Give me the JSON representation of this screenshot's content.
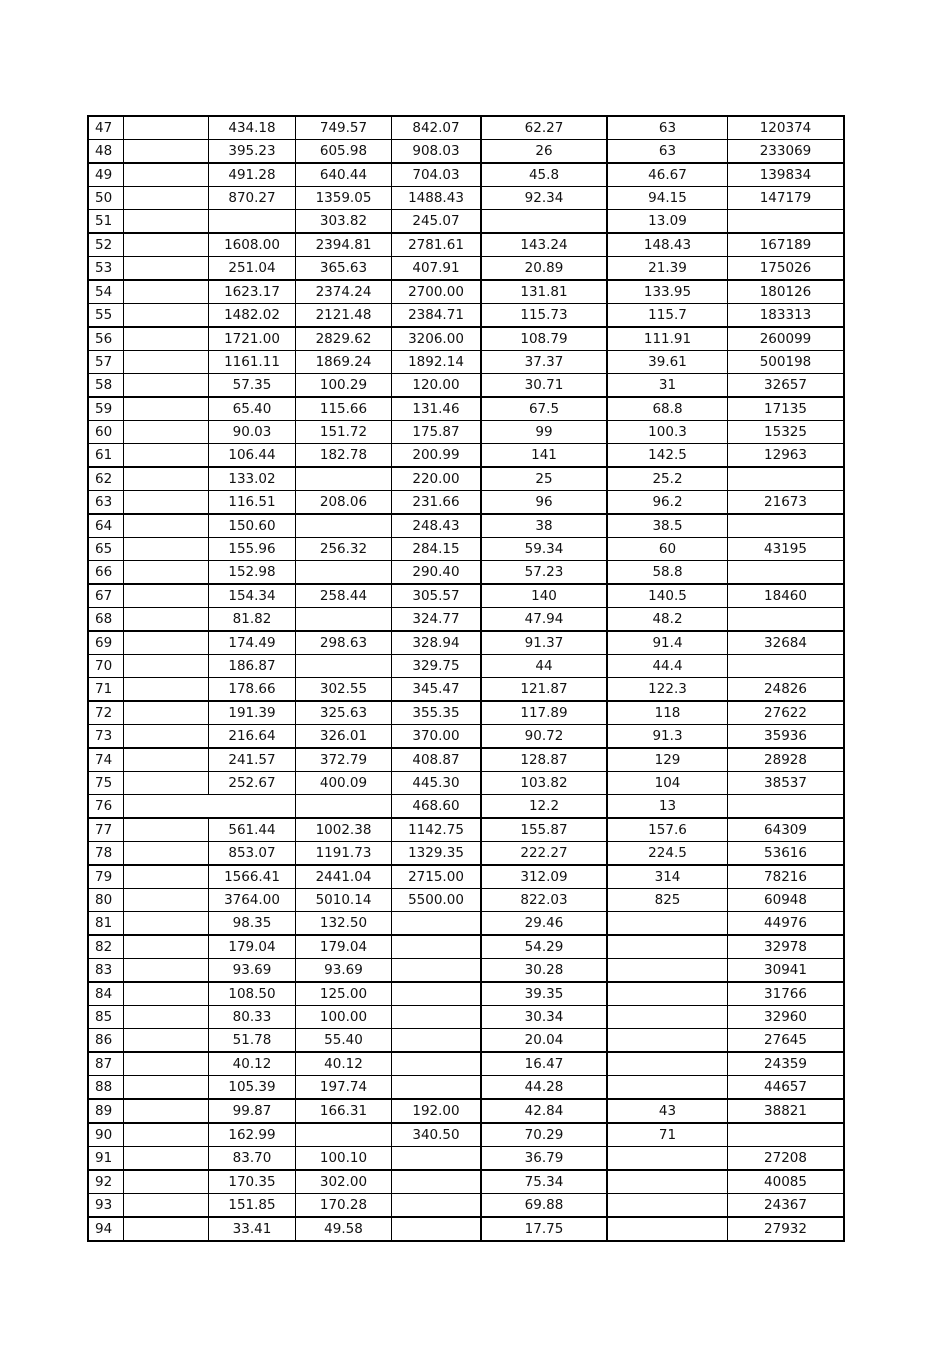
{
  "table": {
    "rows": [
      [
        "47",
        "",
        "434.18",
        "749.57",
        "842.07",
        "62.27",
        "63",
        "120374"
      ],
      [
        "48",
        "",
        "395.23",
        "605.98",
        "908.03",
        "26",
        "63",
        "233069"
      ],
      [
        "49",
        "",
        "491.28",
        "640.44",
        "704.03",
        "45.8",
        "46.67",
        "139834"
      ],
      [
        "50",
        "",
        "870.27",
        "1359.05",
        "1488.43",
        "92.34",
        "94.15",
        "147179"
      ],
      [
        "51",
        "",
        "",
        "303.82",
        "245.07",
        "",
        "13.09",
        ""
      ],
      [
        "52",
        "",
        "1608.00",
        "2394.81",
        "2781.61",
        "143.24",
        "148.43",
        "167189"
      ],
      [
        "53",
        "",
        "251.04",
        "365.63",
        "407.91",
        "20.89",
        "21.39",
        "175026"
      ],
      [
        "54",
        "",
        "1623.17",
        "2374.24",
        "2700.00",
        "131.81",
        "133.95",
        "180126"
      ],
      [
        "55",
        "",
        "1482.02",
        "2121.48",
        "2384.71",
        "115.73",
        "115.7",
        "183313"
      ],
      [
        "56",
        "",
        "1721.00",
        "2829.62",
        "3206.00",
        "108.79",
        "111.91",
        "260099"
      ],
      [
        "57",
        "",
        "1161.11",
        "1869.24",
        "1892.14",
        "37.37",
        "39.61",
        "500198"
      ],
      [
        "58",
        "",
        "57.35",
        "100.29",
        "120.00",
        "30.71",
        "31",
        "32657"
      ],
      [
        "59",
        "",
        "65.40",
        "115.66",
        "131.46",
        "67.5",
        "68.8",
        "17135"
      ],
      [
        "60",
        "",
        "90.03",
        "151.72",
        "175.87",
        "99",
        "100.3",
        "15325"
      ],
      [
        "61",
        "",
        "106.44",
        "182.78",
        "200.99",
        "141",
        "142.5",
        "12963"
      ],
      [
        "62",
        "",
        "133.02",
        "",
        "220.00",
        "25",
        "25.2",
        ""
      ],
      [
        "63",
        "",
        "116.51",
        "208.06",
        "231.66",
        "96",
        "96.2",
        "21673"
      ],
      [
        "64",
        "",
        "150.60",
        "",
        "248.43",
        "38",
        "38.5",
        ""
      ],
      [
        "65",
        "",
        "155.96",
        "256.32",
        "284.15",
        "59.34",
        "60",
        "43195"
      ],
      [
        "66",
        "",
        "152.98",
        "",
        "290.40",
        "57.23",
        "58.8",
        ""
      ],
      [
        "67",
        "",
        "154.34",
        "258.44",
        "305.57",
        "140",
        "140.5",
        "18460"
      ],
      [
        "68",
        "",
        "81.82",
        "",
        "324.77",
        "47.94",
        "48.2",
        ""
      ],
      [
        "69",
        "",
        "174.49",
        "298.63",
        "328.94",
        "91.37",
        "91.4",
        "32684"
      ],
      [
        "70",
        "",
        "186.87",
        "",
        "329.75",
        "44",
        "44.4",
        ""
      ],
      [
        "71",
        "",
        "178.66",
        "302.55",
        "345.47",
        "121.87",
        "122.3",
        "24826"
      ],
      [
        "72",
        "",
        "191.39",
        "325.63",
        "355.35",
        "117.89",
        "118",
        "27622"
      ],
      [
        "73",
        "",
        "216.64",
        "326.01",
        "370.00",
        "90.72",
        "91.3",
        "35936"
      ],
      [
        "74",
        "",
        "241.57",
        "372.79",
        "408.87",
        "128.87",
        "129",
        "28928"
      ],
      [
        "75",
        "",
        "252.67",
        "400.09",
        "445.30",
        "103.82",
        "104",
        "38537"
      ],
      [
        "76",
        "",
        "",
        "",
        "468.60",
        "12.2",
        "13",
        ""
      ],
      [
        "77",
        "",
        "561.44",
        "1002.38",
        "1142.75",
        "155.87",
        "157.6",
        "64309"
      ],
      [
        "78",
        "",
        "853.07",
        "1191.73",
        "1329.35",
        "222.27",
        "224.5",
        "53616"
      ],
      [
        "79",
        "",
        "1566.41",
        "2441.04",
        "2715.00",
        "312.09",
        "314",
        "78216"
      ],
      [
        "80",
        "",
        "3764.00",
        "5010.14",
        "5500.00",
        "822.03",
        "825",
        "60948"
      ],
      [
        "81",
        "",
        "98.35",
        "132.50",
        "",
        "29.46",
        "",
        "44976"
      ],
      [
        "82",
        "",
        "179.04",
        "179.04",
        "",
        "54.29",
        "",
        "32978"
      ],
      [
        "83",
        "",
        "93.69",
        "93.69",
        "",
        "30.28",
        "",
        "30941"
      ],
      [
        "84",
        "",
        "108.50",
        "125.00",
        "",
        "39.35",
        "",
        "31766"
      ],
      [
        "85",
        "",
        "80.33",
        "100.00",
        "",
        "30.34",
        "",
        "32960"
      ],
      [
        "86",
        "",
        "51.78",
        "55.40",
        "",
        "20.04",
        "",
        "27645"
      ],
      [
        "87",
        "",
        "40.12",
        "40.12",
        "",
        "16.47",
        "",
        "24359"
      ],
      [
        "88",
        "",
        "105.39",
        "197.74",
        "",
        "44.28",
        "",
        "44657"
      ],
      [
        "89",
        "",
        "99.87",
        "166.31",
        "192.00",
        "42.84",
        "43",
        "38821"
      ],
      [
        "90",
        "",
        "162.99",
        "",
        "340.50",
        "70.29",
        "71",
        ""
      ],
      [
        "91",
        "",
        "83.70",
        "100.10",
        "",
        "36.79",
        "",
        "27208"
      ],
      [
        "92",
        "",
        "170.35",
        "302.00",
        "",
        "75.34",
        "",
        "40085"
      ],
      [
        "93",
        "",
        "151.85",
        "170.28",
        "",
        "69.88",
        "",
        "24367"
      ],
      [
        "94",
        "",
        "33.41",
        "49.58",
        "",
        "17.75",
        "",
        "27932"
      ]
    ]
  }
}
